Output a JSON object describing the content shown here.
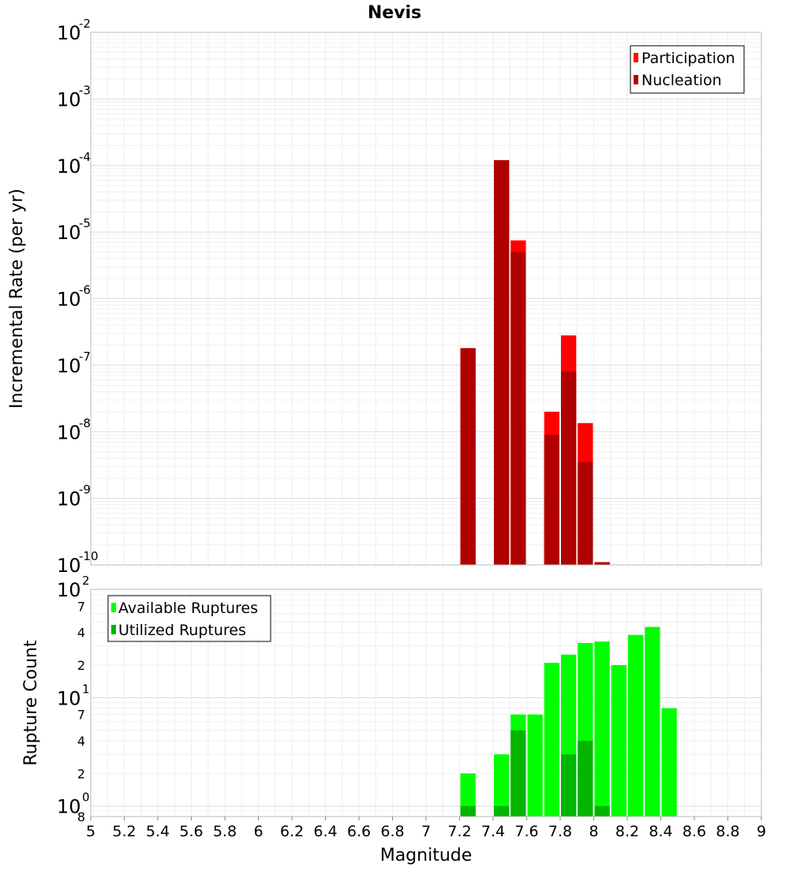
{
  "title": "Nevis",
  "colors": {
    "participation": "#ff0000",
    "nucleation": "#b00000",
    "available": "#00ff00",
    "utilized": "#00b400"
  },
  "chart_data": [
    {
      "type": "bar",
      "scale": "log",
      "ylabel": "Incremental Rate (per yr)",
      "xlabel": "Magnitude",
      "xlim": [
        5,
        9
      ],
      "ylim_exponents": [
        -10,
        -2
      ],
      "ytick_exponents": [
        "-10",
        "-9",
        "-8",
        "-7",
        "-6",
        "-5",
        "-4",
        "-3",
        "-2"
      ],
      "legend": {
        "position": "top-right",
        "entries": [
          "Participation",
          "Nucleation"
        ]
      },
      "bar_width": 0.1,
      "series": [
        {
          "name": "Participation",
          "x": [
            7.25,
            7.45,
            7.55,
            7.75,
            7.85,
            7.95,
            8.05
          ],
          "values": [
            1.8e-07,
            0.00012,
            7.5e-06,
            2e-08,
            2.8e-07,
            1.35e-08,
            1.1e-10
          ]
        },
        {
          "name": "Nucleation",
          "x": [
            7.25,
            7.45,
            7.55,
            7.75,
            7.85,
            7.95,
            8.05
          ],
          "values": [
            1.8e-07,
            0.00012,
            5e-06,
            9e-09,
            8e-08,
            3.5e-09,
            1.1e-10
          ]
        }
      ]
    },
    {
      "type": "bar",
      "scale": "log",
      "ylabel": "Rupture Count",
      "xlabel": "Magnitude",
      "xlim": [
        5,
        9
      ],
      "ylim": [
        0.8,
        100
      ],
      "major_ticks": [
        {
          "value": 1,
          "base": "10",
          "exp": "0"
        },
        {
          "value": 10,
          "base": "10",
          "exp": "1"
        },
        {
          "value": 100,
          "base": "10",
          "exp": "2"
        }
      ],
      "minor_tick_labels": [
        "8",
        "2",
        "4",
        "7",
        "2",
        "4",
        "7"
      ],
      "minor_tick_values": [
        0.8,
        2,
        4,
        7,
        20,
        40,
        70
      ],
      "legend": {
        "position": "top-left",
        "entries": [
          "Available Ruptures",
          "Utilized Ruptures"
        ]
      },
      "bar_width": 0.1,
      "series": [
        {
          "name": "Available Ruptures",
          "x": [
            7.25,
            7.45,
            7.55,
            7.65,
            7.75,
            7.85,
            7.95,
            8.05,
            8.15,
            8.25,
            8.35,
            8.45
          ],
          "values": [
            2,
            3,
            7,
            7,
            21,
            25,
            32,
            33,
            20,
            38,
            45,
            8
          ]
        },
        {
          "name": "Utilized Ruptures",
          "x": [
            7.25,
            7.45,
            7.55,
            7.85,
            7.95,
            8.05
          ],
          "values": [
            1,
            1,
            5,
            3,
            4,
            1
          ]
        }
      ]
    }
  ],
  "xticks": [
    "5",
    "5.2",
    "5.4",
    "5.6",
    "5.8",
    "6",
    "6.2",
    "6.4",
    "6.6",
    "6.8",
    "7",
    "7.2",
    "7.4",
    "7.6",
    "7.8",
    "8",
    "8.2",
    "8.4",
    "8.6",
    "8.8",
    "9"
  ]
}
